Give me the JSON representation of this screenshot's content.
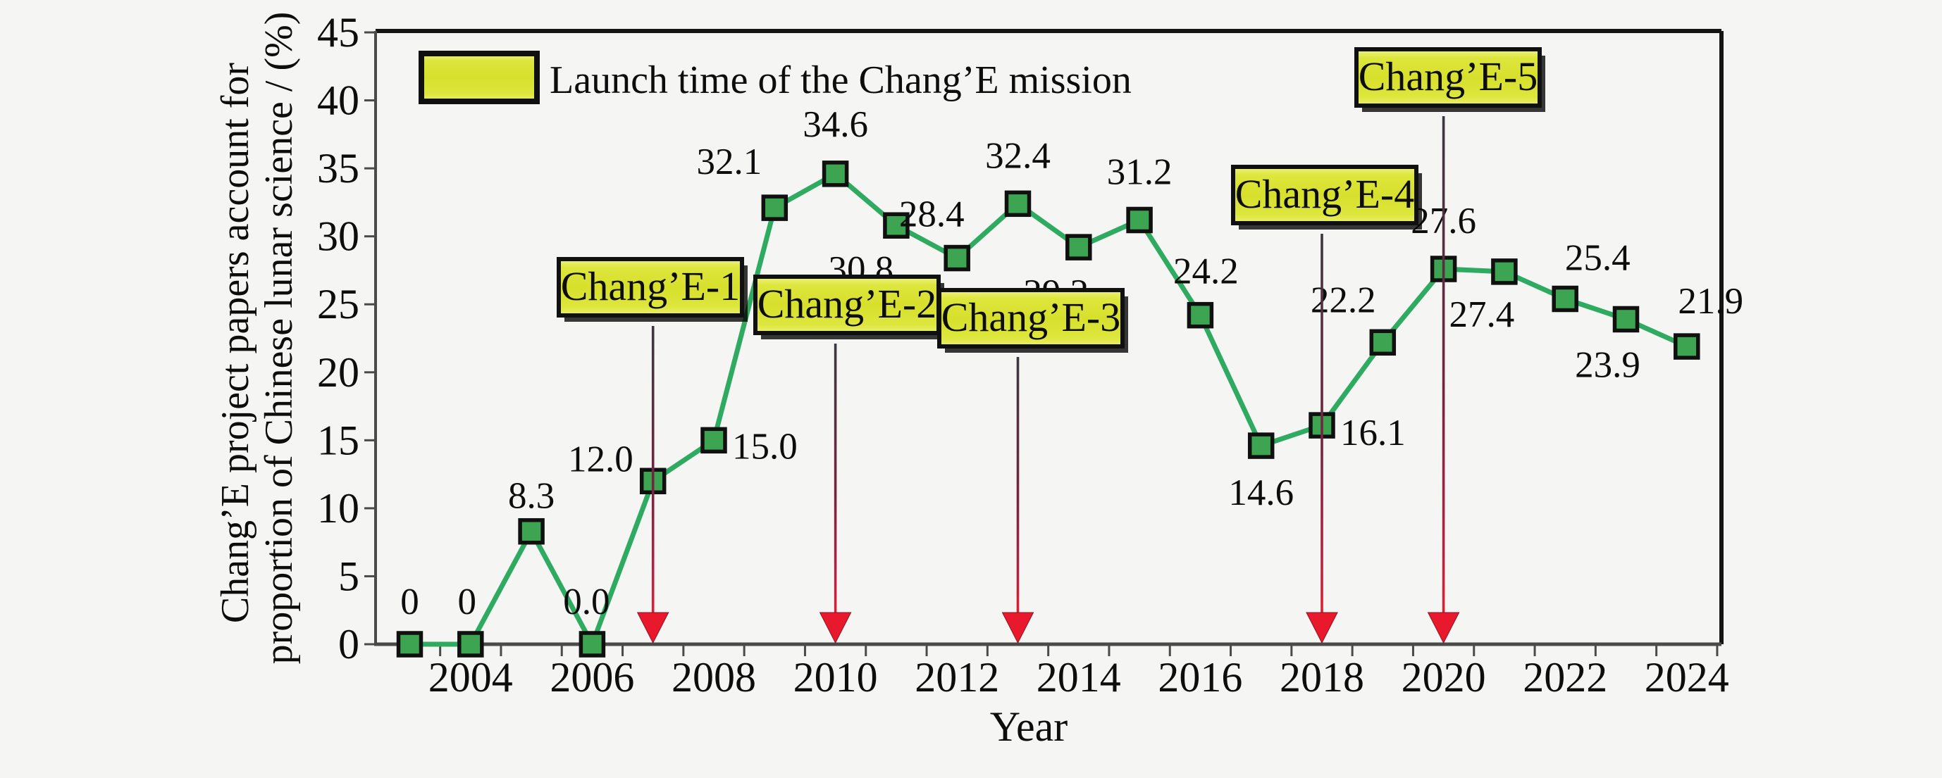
{
  "background": "#f5f5f3",
  "chart_data": {
    "type": "line",
    "title": "",
    "xlabel": "Year",
    "ylabel_lines": [
      "Chang’E project papers account for",
      "proportion of Chinese lunar science / (%)"
    ],
    "legend": {
      "label": "Launch time of the Chang’E mission",
      "position": "top-left",
      "swatch_color": "#d9e233"
    },
    "x": [
      2003,
      2004,
      2005,
      2006,
      2007,
      2008,
      2009,
      2010,
      2011,
      2012,
      2013,
      2014,
      2015,
      2016,
      2017,
      2018,
      2019,
      2020,
      2021,
      2022,
      2023,
      2024
    ],
    "series": [
      {
        "values": [
          0,
          0,
          8.3,
          0.0,
          12.0,
          15.0,
          32.1,
          34.6,
          30.8,
          28.4,
          32.4,
          29.2,
          31.2,
          24.2,
          14.6,
          16.1,
          22.2,
          27.6,
          27.4,
          25.4,
          23.9,
          21.9
        ],
        "point_labels": [
          "0",
          "0",
          "8.3",
          "0.0",
          "12.0",
          "15.0",
          "32.1",
          "34.6",
          "30.8",
          "28.4",
          "32.4",
          "29.2",
          "31.2",
          "24.2",
          "14.6",
          "16.1",
          "22.2",
          "27.6",
          "27.4",
          "25.4",
          "23.9",
          "21.9"
        ]
      }
    ],
    "ylim": [
      0,
      45
    ],
    "yticks": [
      0,
      5,
      10,
      15,
      20,
      25,
      30,
      35,
      40,
      45
    ],
    "xtick_labels": [
      "2004",
      "2006",
      "2008",
      "2010",
      "2012",
      "2014",
      "2016",
      "2018",
      "2020",
      "2022",
      "2024"
    ],
    "grid": false,
    "annotations": [
      {
        "label": "Chang’E-1",
        "year": 2007
      },
      {
        "label": "Chang’E-2",
        "year": 2010
      },
      {
        "label": "Chang’E-3",
        "year": 2013
      },
      {
        "label": "Chang’E-4",
        "year": 2018
      },
      {
        "label": "Chang’E-5",
        "year": 2020
      }
    ],
    "colors": {
      "line": "#2faa61",
      "marker": "#3da452",
      "marker_border": "#101010",
      "annotation_box": "#d9e233",
      "annotation_border": "#101010",
      "arrow_shaft": "#b02343",
      "arrow_head": "#e8192c",
      "axis": "#4a4a4a",
      "frame": "#141414",
      "text": "#0d0d0d"
    }
  }
}
